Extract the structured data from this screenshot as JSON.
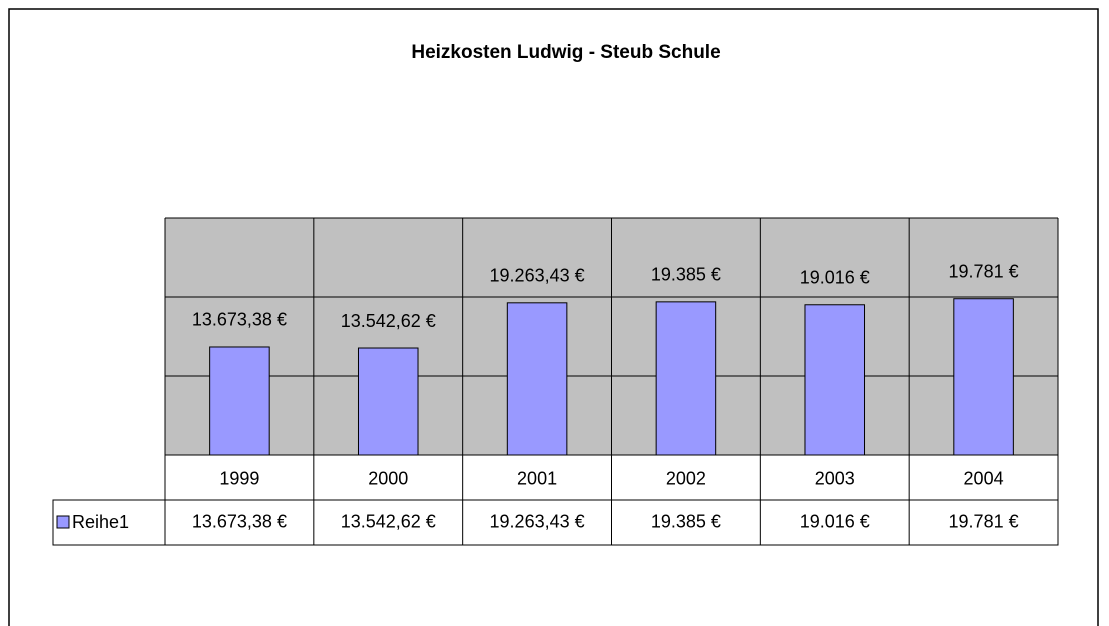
{
  "chart_data": {
    "type": "bar",
    "title": "Heizkosten Ludwig - Steub Schule",
    "categories": [
      "1999",
      "2000",
      "2001",
      "2002",
      "2003",
      "2004"
    ],
    "series": [
      {
        "name": "Reihe1",
        "color": "#9999ff",
        "values": [
          13673.38,
          13542.62,
          19263.43,
          19385,
          19016,
          19781
        ],
        "value_labels": [
          "13.673,38 €",
          "13.542,62 €",
          "19.263,43 €",
          "19.385 €",
          "19.016 €",
          "19.781 €"
        ]
      }
    ],
    "ylim": [
      0,
      30000
    ],
    "yticks": [
      0,
      10000,
      20000,
      30000
    ],
    "grid": true,
    "plot_color": "#c0c0c0"
  }
}
